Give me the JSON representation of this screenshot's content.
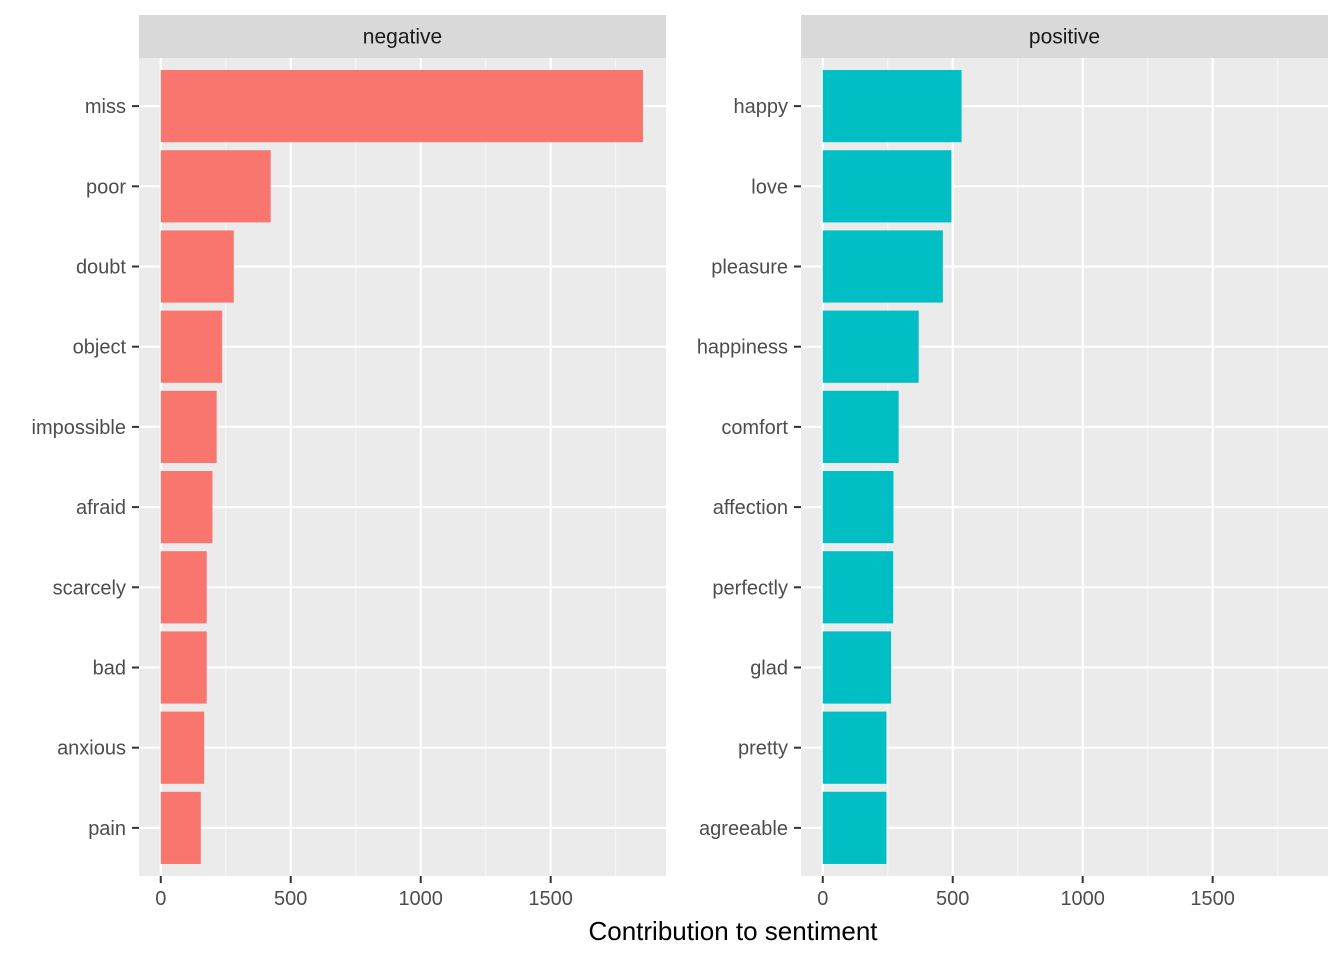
{
  "chart_data": {
    "type": "bar",
    "orientation": "horizontal",
    "xlabel": "Contribution to sentiment",
    "ylabel": "",
    "xlim": [
      0,
      1860
    ],
    "x_ticks": [
      0,
      500,
      1000,
      1500
    ],
    "grid": true,
    "legend": "none",
    "panels": [
      {
        "name": "negative",
        "color": "#F8766D",
        "categories": [
          "miss",
          "poor",
          "doubt",
          "object",
          "impossible",
          "afraid",
          "scarcely",
          "bad",
          "anxious",
          "pain"
        ],
        "values": [
          1855,
          423,
          281,
          236,
          215,
          199,
          177,
          177,
          167,
          154
        ]
      },
      {
        "name": "positive",
        "color": "#00BFC4",
        "categories": [
          "happy",
          "love",
          "pleasure",
          "happiness",
          "comfort",
          "affection",
          "perfectly",
          "glad",
          "pretty",
          "agreeable"
        ],
        "values": [
          534,
          495,
          462,
          369,
          292,
          272,
          271,
          263,
          245,
          245
        ]
      }
    ]
  }
}
